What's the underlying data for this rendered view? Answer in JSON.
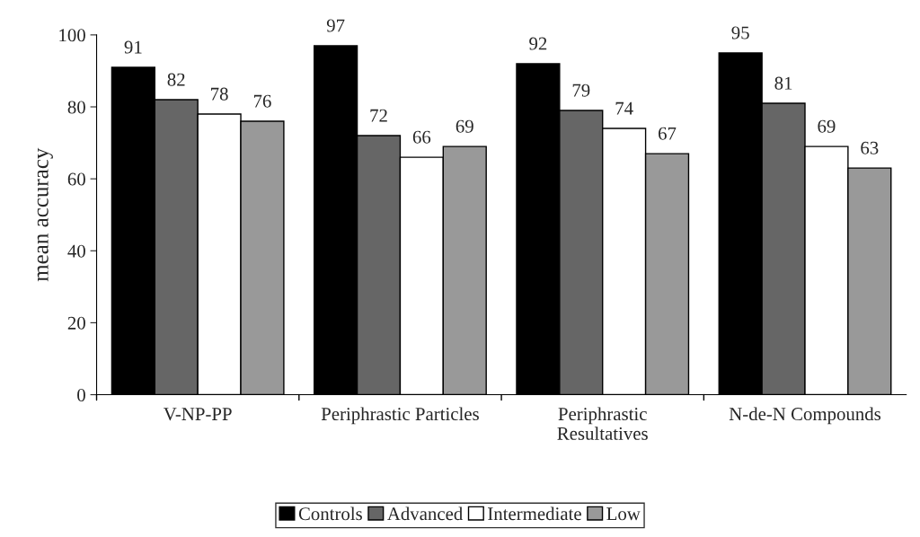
{
  "chart_data": {
    "type": "bar",
    "ylabel": "mean accuracy",
    "categories": [
      "V-NP-PP",
      "Periphrastic Particles",
      "Periphrastic\nResultatives",
      "N-de-N Compounds"
    ],
    "series": [
      {
        "name": "Controls",
        "color": "#000000",
        "values": [
          91,
          97,
          92,
          95
        ]
      },
      {
        "name": "Advanced",
        "color": "#666666",
        "values": [
          82,
          72,
          79,
          81
        ]
      },
      {
        "name": "Intermediate",
        "color": "#ffffff",
        "values": [
          78,
          66,
          74,
          69
        ]
      },
      {
        "name": "Low",
        "color": "#999999",
        "values": [
          76,
          69,
          67,
          63
        ]
      }
    ],
    "ylim": [
      0,
      100
    ],
    "yticks": [
      0,
      20,
      40,
      60,
      80,
      100
    ],
    "data_labels": true,
    "legend": "bottom",
    "grid": false
  }
}
